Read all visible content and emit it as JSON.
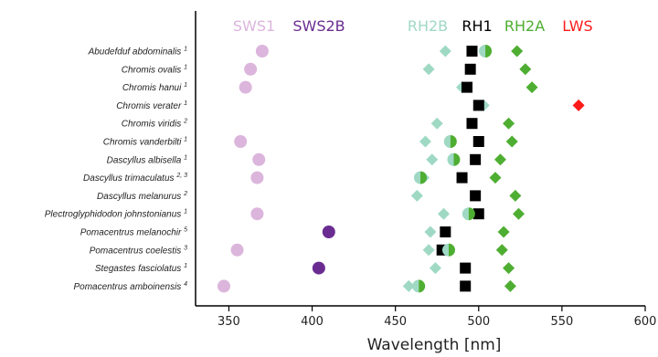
{
  "chart_data": {
    "type": "scatter",
    "xlabel": "Wavelength [nm]",
    "xlim": [
      330,
      600
    ],
    "xticks": [
      "350",
      "400",
      "450",
      "500",
      "550",
      "600"
    ],
    "xtick_values": [
      350,
      400,
      450,
      500,
      550,
      600
    ],
    "colors": {
      "SWS1": "#dcb5dc",
      "SWS2B": "#6a2c91",
      "RH2B": "#9fd9c4",
      "RH1": "#000000",
      "RH2A": "#4eae32",
      "LWS": "#ff1a1a"
    },
    "legend": [
      "SWS1",
      "SWS2B",
      "RH2B",
      "RH1",
      "RH2A",
      "LWS"
    ],
    "species": [
      {
        "name": "Abudefduf abdominalis",
        "sup": "1",
        "SWS1": 370,
        "SWS2B": null,
        "RH2B": 480,
        "RH1": 496,
        "RH2A": 523,
        "LWS": null,
        "mixed": 504
      },
      {
        "name": "Chromis ovalis",
        "sup": "1",
        "SWS1": 363,
        "SWS2B": null,
        "RH2B": 470,
        "RH1": 495,
        "RH2A": 528,
        "LWS": null,
        "mixed": null
      },
      {
        "name": "Chromis hanui",
        "sup": "1",
        "SWS1": 360,
        "SWS2B": null,
        "RH2B": 490,
        "RH1": 493,
        "RH2A": 532,
        "LWS": null,
        "mixed": null
      },
      {
        "name": "Chromis verater",
        "sup": "1",
        "SWS1": null,
        "SWS2B": null,
        "RH2B": 503,
        "RH1": 500,
        "RH2A": null,
        "LWS": 560,
        "mixed": null
      },
      {
        "name": "Chromis viridis",
        "sup": "2",
        "SWS1": null,
        "SWS2B": null,
        "RH2B": 475,
        "RH1": 496,
        "RH2A": 518,
        "LWS": null,
        "mixed": null
      },
      {
        "name": "Chromis vanderbilti",
        "sup": "1",
        "SWS1": 357,
        "SWS2B": null,
        "RH2B": 468,
        "RH1": 500,
        "RH2A": 520,
        "LWS": null,
        "mixed": 483
      },
      {
        "name": "Dascyllus albisella",
        "sup": "1",
        "SWS1": 368,
        "SWS2B": null,
        "RH2B": 472,
        "RH1": 498,
        "RH2A": 513,
        "LWS": null,
        "mixed": 485
      },
      {
        "name": "Dascyllus trimaculatus",
        "sup": "2, 3",
        "SWS1": 367,
        "SWS2B": null,
        "RH2B": 467,
        "RH1": 490,
        "RH2A": 510,
        "LWS": null,
        "mixed": 465
      },
      {
        "name": "Dascyllus melanurus",
        "sup": "2",
        "SWS1": null,
        "SWS2B": null,
        "RH2B": 463,
        "RH1": 498,
        "RH2A": 522,
        "LWS": null,
        "mixed": null
      },
      {
        "name": "Plectroglyphidodon johnstonianus",
        "sup": "1",
        "SWS1": 367,
        "SWS2B": null,
        "RH2B": 479,
        "RH1": 500,
        "RH2A": 524,
        "LWS": null,
        "mixed": 494
      },
      {
        "name": "Pomacentrus melanochir",
        "sup": "5",
        "SWS1": null,
        "SWS2B": 410,
        "RH2B": 471,
        "RH1": 480,
        "RH2A": 515,
        "LWS": null,
        "mixed": null
      },
      {
        "name": "Pomacentrus coelestis",
        "sup": "3",
        "SWS1": 355,
        "SWS2B": null,
        "RH2B": 470,
        "RH1": 478,
        "RH2A": 514,
        "LWS": null,
        "mixed": 482
      },
      {
        "name": "Stegastes fasciolatus",
        "sup": "1",
        "SWS1": null,
        "SWS2B": 404,
        "RH2B": 474,
        "RH1": 492,
        "RH2A": 518,
        "LWS": null,
        "mixed": null
      },
      {
        "name": "Pomacentrus amboinensis",
        "sup": "4",
        "SWS1": 347,
        "SWS2B": null,
        "RH2B": 458,
        "RH1": 492,
        "RH2A": 519,
        "LWS": null,
        "mixed": 464
      }
    ]
  }
}
